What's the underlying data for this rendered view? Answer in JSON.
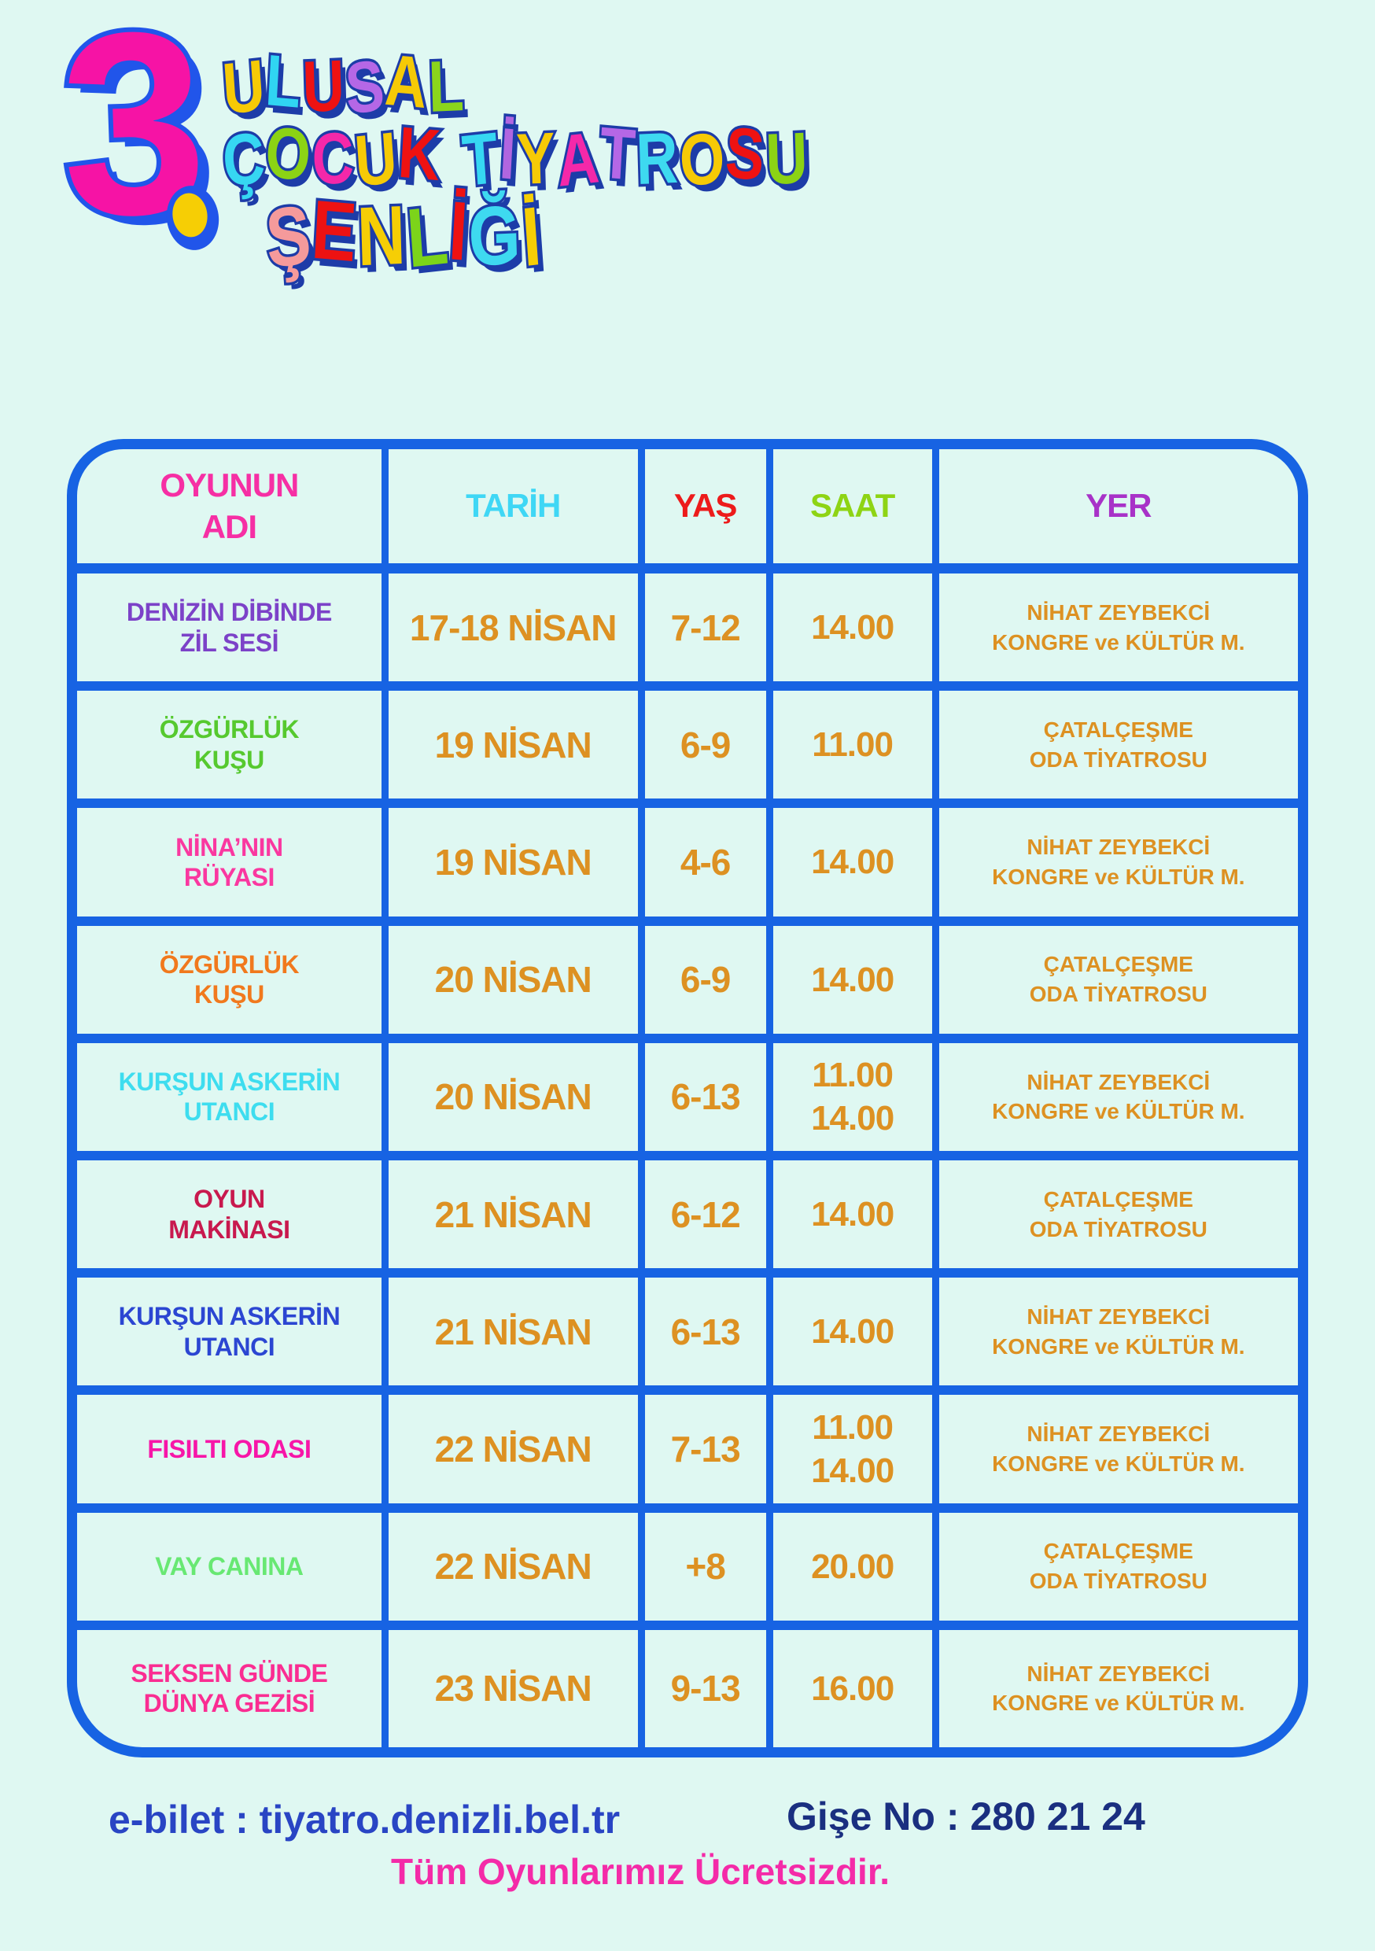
{
  "title": {
    "number": "3",
    "lines": [
      {
        "letters": [
          {
            "ch": "U",
            "color": "#F6CA06"
          },
          {
            "ch": "L",
            "color": "#30D5F2"
          },
          {
            "ch": "U",
            "color": "#EE1212"
          },
          {
            "ch": "S",
            "color": "#B567E6"
          },
          {
            "ch": "A",
            "color": "#F6CA06"
          },
          {
            "ch": "L",
            "color": "#8BD51C"
          }
        ]
      },
      {
        "letters": [
          {
            "ch": "Ç",
            "color": "#36D7F2"
          },
          {
            "ch": "O",
            "color": "#8CD314"
          },
          {
            "ch": "C",
            "color": "#F428A9"
          },
          {
            "ch": "U",
            "color": "#F6CA06"
          },
          {
            "ch": "K",
            "color": "#EE1212"
          },
          {
            "ch": " ",
            "color": ""
          },
          {
            "ch": "T",
            "color": "#36D7F2"
          },
          {
            "ch": "İ",
            "color": "#B166E0"
          },
          {
            "ch": "Y",
            "color": "#F6CA06"
          },
          {
            "ch": "A",
            "color": "#F428A9"
          },
          {
            "ch": "T",
            "color": "#B567E6"
          },
          {
            "ch": "R",
            "color": "#3ED9F0"
          },
          {
            "ch": "O",
            "color": "#F6CA06"
          },
          {
            "ch": "S",
            "color": "#EE1212"
          },
          {
            "ch": "U",
            "color": "#8CD314"
          }
        ]
      },
      {
        "letters": [
          {
            "ch": "Ş",
            "color": "#F59A9B"
          },
          {
            "ch": "E",
            "color": "#ED1212"
          },
          {
            "ch": "N",
            "color": "#F6CE05"
          },
          {
            "ch": "L",
            "color": "#7CD41A"
          },
          {
            "ch": "İ",
            "color": "#EE1212"
          },
          {
            "ch": "Ğ",
            "color": "#3ED9F0"
          },
          {
            "ch": "İ",
            "color": "#F6CE05"
          }
        ]
      }
    ]
  },
  "table": {
    "headers": [
      {
        "label": "OYUNUN\nADI",
        "color": "#F62FA4"
      },
      {
        "label": "TARİH",
        "color": "#3FD7F5"
      },
      {
        "label": "YAŞ",
        "color": "#ED1B1B"
      },
      {
        "label": "SAAT",
        "color": "#8ED414"
      },
      {
        "label": "YER",
        "color": "#A832C8"
      }
    ],
    "rows": [
      {
        "name": "DENİZİN DİBİNDE\nZİL SESİ",
        "name_color": "#7C42C8",
        "date": "17-18 NİSAN",
        "age": "7-12",
        "time": "14.00",
        "venue": "NİHAT ZEYBEKCİ\nKONGRE ve KÜLTÜR M."
      },
      {
        "name": "ÖZGÜRLÜK\nKUŞU",
        "name_color": "#56C92F",
        "date": "19 NİSAN",
        "age": "6-9",
        "time": "11.00",
        "venue": "ÇATALÇEŞME\nODA TİYATROSU"
      },
      {
        "name": "NİNA’NIN\nRÜYASI",
        "name_color": "#FA38A0",
        "date": "19 NİSAN",
        "age": "4-6",
        "time": "14.00",
        "venue": "NİHAT ZEYBEKCİ\nKONGRE ve KÜLTÜR M."
      },
      {
        "name": "ÖZGÜRLÜK\nKUŞU",
        "name_color": "#F1791D",
        "date": "20 NİSAN",
        "age": "6-9",
        "time": "14.00",
        "venue": "ÇATALÇEŞME\nODA TİYATROSU"
      },
      {
        "name": "KURŞUN ASKERİN\nUTANCI",
        "name_color": "#3EDDEF",
        "date": "20 NİSAN",
        "age": "6-13",
        "time": "11.00\n14.00",
        "venue": "NİHAT ZEYBEKCİ\nKONGRE ve KÜLTÜR M."
      },
      {
        "name": "OYUN\nMAKİNASI",
        "name_color": "#C8194E",
        "date": "21 NİSAN",
        "age": "6-12",
        "time": "14.00",
        "venue": "ÇATALÇEŞME\nODA TİYATROSU"
      },
      {
        "name": "KURŞUN ASKERİN\nUTANCI",
        "name_color": "#2B46D2",
        "date": "21 NİSAN",
        "age": "6-13",
        "time": "14.00",
        "venue": "NİHAT ZEYBEKCİ\nKONGRE ve KÜLTÜR M."
      },
      {
        "name": "FISILTI ODASI",
        "name_color": "#F716A8",
        "date": "22 NİSAN",
        "age": "7-13",
        "time": "11.00\n14.00",
        "venue": "NİHAT ZEYBEKCİ\nKONGRE ve KÜLTÜR M."
      },
      {
        "name": "VAY CANINA",
        "name_color": "#68E873",
        "date": "22 NİSAN",
        "age": "+8",
        "time": "20.00",
        "venue": "ÇATALÇEŞME\nODA TİYATROSU"
      },
      {
        "name": "SEKSEN GÜNDE\nDÜNYA GEZİSİ",
        "name_color": "#FA2D92",
        "date": "23 NİSAN",
        "age": "9-13",
        "time": "16.00",
        "venue": "NİHAT ZEYBEKCİ\nKONGRE ve KÜLTÜR M."
      }
    ]
  },
  "footer": {
    "ebilet": "e-bilet : tiyatro.denizli.bel.tr",
    "gise": "Gişe No : 280 21 24",
    "free": "Tüm Oyunlarımız Ücretsizdir."
  },
  "colors": {
    "background": "#DFF8F2",
    "table_border": "#1763E3",
    "data_text": "#DD9122",
    "title_outline": "#1D3CA8",
    "number_fill": "#F613A5",
    "number_outline": "#2155EA",
    "ebilet_text": "#2945C4",
    "gise_text": "#1A2F80",
    "free_text": "#F42BA8"
  }
}
